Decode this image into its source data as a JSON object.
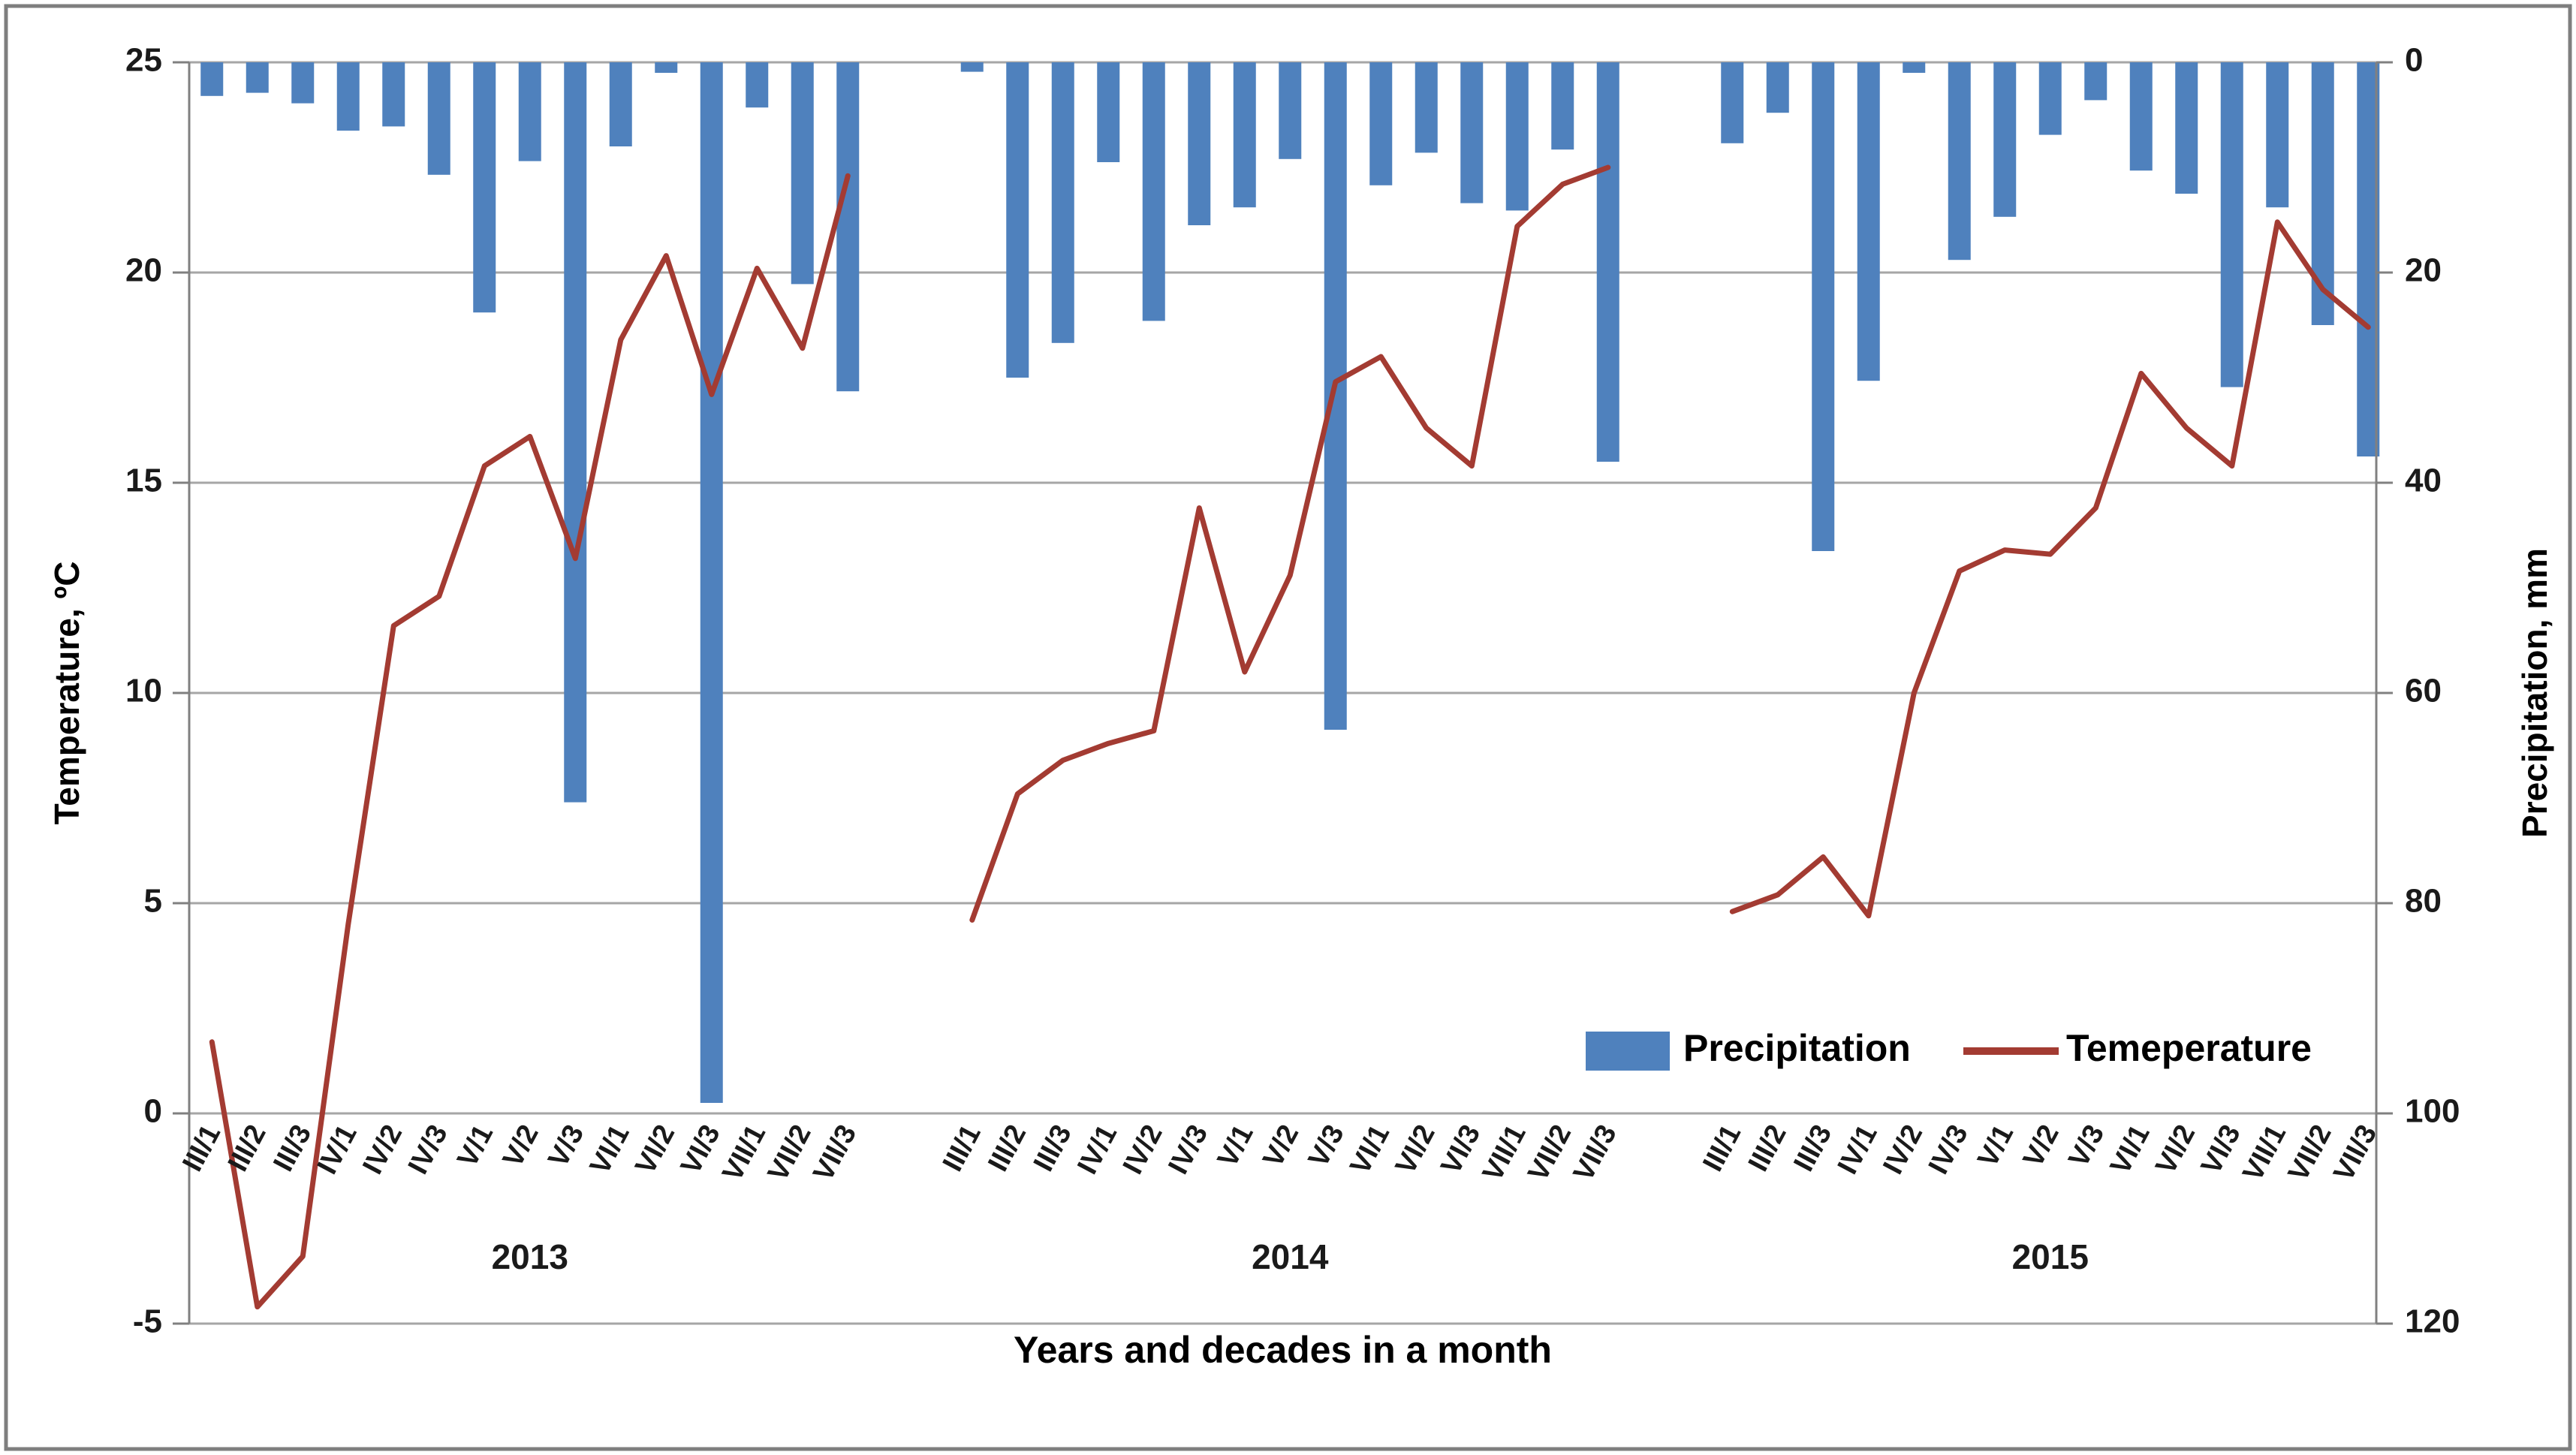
{
  "figure": {
    "background": "#FFFFFF",
    "border_color": "#7F7F7F"
  },
  "chart_data": {
    "type": "combo",
    "x_title": "Years and decades in a month",
    "left_axis": {
      "title": "Temperature, ºC",
      "min": -5,
      "max": 25,
      "tick_step": 5,
      "ticks": [
        "25",
        "20",
        "15",
        "10",
        "5",
        "0",
        "-5"
      ]
    },
    "right_axis": {
      "title": "Precipitation, mm",
      "min": 0,
      "max": 120,
      "tick_step": 20,
      "inverted": true,
      "ticks": [
        "0",
        "20",
        "40",
        "60",
        "80",
        "100",
        "120"
      ]
    },
    "decade_labels": [
      "III/1",
      "III/2",
      "III/3",
      "IV/1",
      "IV/2",
      "IV/3",
      "V/1",
      "V/2",
      "V/3",
      "VI/1",
      "VI/2",
      "VI/3",
      "VII/1",
      "VII/2",
      "VII/3"
    ],
    "year_groups": [
      "2013",
      "2014",
      "2015"
    ],
    "series": [
      {
        "name": "Precipitation",
        "type": "bar",
        "axis": "right",
        "color": "#4F81BD",
        "values_by_year": [
          [
            3.2,
            2.9,
            3.9,
            6.5,
            6.1,
            10.7,
            23.8,
            9.4,
            70.4,
            8.0,
            1.0,
            99.0,
            4.3,
            21.1,
            31.3
          ],
          [
            0.9,
            30.0,
            26.7,
            9.5,
            24.6,
            15.5,
            13.8,
            9.2,
            63.5,
            11.7,
            8.6,
            13.4,
            14.1,
            8.3,
            38.0
          ],
          [
            7.7,
            4.8,
            46.5,
            30.3,
            1.0,
            18.8,
            14.7,
            6.9,
            3.6,
            10.3,
            12.5,
            30.9,
            13.8,
            25.0,
            37.5
          ]
        ]
      },
      {
        "name": "Temeperature",
        "type": "line",
        "axis": "left",
        "color": "#A33B32",
        "values_by_year": [
          [
            1.7,
            -4.6,
            -3.4,
            4.5,
            11.6,
            12.3,
            15.4,
            16.1,
            13.2,
            18.4,
            20.4,
            17.1,
            20.1,
            18.2,
            22.3
          ],
          [
            4.6,
            7.6,
            8.4,
            8.8,
            9.1,
            14.4,
            10.5,
            12.8,
            17.4,
            18.0,
            16.3,
            15.4,
            21.1,
            22.1,
            22.5
          ],
          [
            4.8,
            5.2,
            6.1,
            4.7,
            10.0,
            12.9,
            13.4,
            13.3,
            14.4,
            17.6,
            16.3,
            15.4,
            21.2,
            19.6,
            18.7
          ]
        ]
      }
    ],
    "legend": {
      "position": "inside-bottom-right",
      "items": [
        "Precipitation",
        "Temeperature"
      ]
    },
    "grid": {
      "horizontal": true,
      "color": "#A6A6A6"
    },
    "axis_color": "#808080",
    "text_color": "#1A1A1A"
  }
}
